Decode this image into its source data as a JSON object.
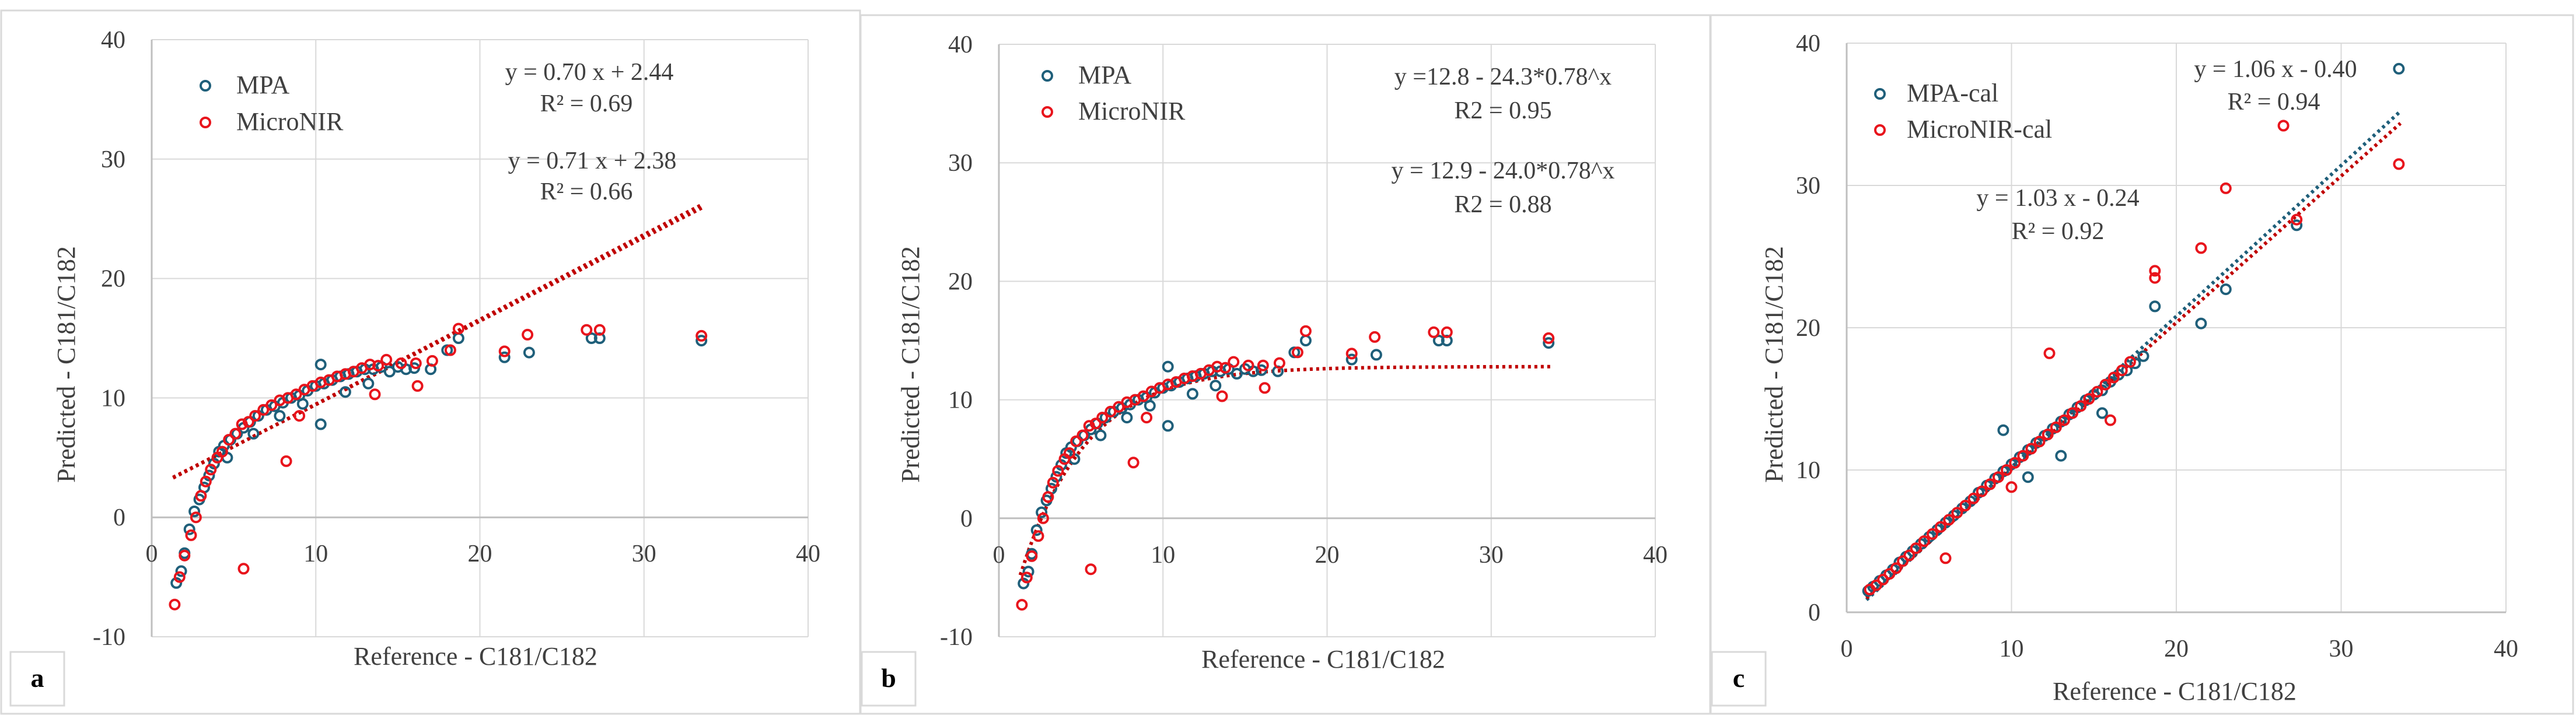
{
  "figure": {
    "charts": [
      {
        "panel_label": "a",
        "legend": [
          "MPA",
          "MicroNIR"
        ],
        "annotations": [
          "y = 0.70 x + 2.44",
          "R² = 0.69",
          "y = 0.71 x + 2.38",
          "R² = 0.66"
        ]
      },
      {
        "panel_label": "b",
        "legend": [
          "MPA",
          "MicroNIR"
        ],
        "annotations": [
          "y =12.8 - 24.3*0.78^x",
          "R2 = 0.95",
          "y = 12.9 - 24.0*0.78^x",
          "R2 = 0.88"
        ]
      },
      {
        "panel_label": "c",
        "legend": [
          "MPA-cal",
          "MicroNIR-cal"
        ],
        "annotations": [
          "y = 1.06 x - 0.40",
          "R² = 0.94",
          "y = 1.03 x - 0.24",
          "R² = 0.92"
        ]
      }
    ]
  },
  "colors": {
    "mpa": "#1f5f7a",
    "micronir": "#e8141c",
    "trend": "#c00000",
    "grid": "#d9d9d9",
    "axis": "#bfbfbf",
    "text": "#404040"
  },
  "chart_data": [
    {
      "type": "scatter",
      "title": "",
      "xlabel": "Reference - C181/C182",
      "ylabel": "Predicted - C181/C182",
      "xlim": [
        0,
        40
      ],
      "ylim": [
        -10,
        40
      ],
      "xticks": [
        0,
        10,
        20,
        30,
        40
      ],
      "yticks": [
        -10,
        0,
        10,
        20,
        30,
        40
      ],
      "grid": true,
      "legend_position": "top-left",
      "series": [
        {
          "name": "MPA",
          "marker": "open-circle",
          "x": [
            1.5,
            1.8,
            2.0,
            2.3,
            2.6,
            2.9,
            3.2,
            3.5,
            3.8,
            4.1,
            4.4,
            4.8,
            5.2,
            5.6,
            6.0,
            6.5,
            7.0,
            7.5,
            8.0,
            8.5,
            9.0,
            9.5,
            10.0,
            10.5,
            11.0,
            11.5,
            12.0,
            12.5,
            13.0,
            13.5,
            14.0,
            14.5,
            15.0,
            15.5,
            16.0,
            17.0,
            18.0,
            18.7,
            21.5,
            23.0,
            26.8,
            27.3,
            33.5,
            4.6,
            6.2,
            7.8,
            9.2,
            10.3,
            11.8,
            13.2,
            10.3
          ],
          "y": [
            -5.5,
            -4.5,
            -3.0,
            -1.0,
            0.5,
            1.5,
            2.5,
            3.5,
            4.5,
            5.5,
            6.0,
            6.5,
            7.0,
            7.5,
            8.0,
            8.5,
            9.0,
            9.3,
            9.6,
            10.0,
            10.2,
            10.6,
            11.0,
            11.2,
            11.5,
            11.8,
            12.0,
            12.2,
            12.4,
            12.4,
            12.6,
            12.2,
            12.6,
            12.4,
            12.5,
            12.4,
            14.0,
            15.0,
            13.4,
            13.8,
            15.0,
            15.0,
            14.8,
            5.0,
            7.0,
            8.5,
            9.5,
            12.8,
            10.5,
            11.2,
            7.8
          ]
        },
        {
          "name": "MicroNIR",
          "marker": "open-circle",
          "x": [
            1.4,
            1.7,
            2.0,
            2.4,
            2.7,
            3.0,
            3.3,
            3.6,
            4.0,
            4.3,
            4.7,
            5.1,
            5.5,
            5.9,
            6.3,
            6.8,
            7.3,
            7.8,
            8.3,
            8.8,
            9.3,
            9.8,
            10.3,
            10.8,
            11.3,
            11.8,
            12.3,
            12.8,
            13.3,
            13.8,
            14.3,
            15.2,
            16.1,
            17.1,
            18.2,
            18.7,
            21.5,
            22.9,
            26.5,
            27.3,
            33.5,
            5.6,
            8.2,
            9.0,
            13.6,
            16.2
          ],
          "y": [
            -7.3,
            -5.0,
            -3.2,
            -1.5,
            0.0,
            1.8,
            3.0,
            4.0,
            5.0,
            5.5,
            6.5,
            7.0,
            7.8,
            8.0,
            8.5,
            9.0,
            9.4,
            9.8,
            10.0,
            10.3,
            10.7,
            11.0,
            11.3,
            11.5,
            11.8,
            12.0,
            12.2,
            12.5,
            12.8,
            12.7,
            13.2,
            12.9,
            12.9,
            13.1,
            14.0,
            15.8,
            13.9,
            15.3,
            15.7,
            15.7,
            15.2,
            -4.3,
            4.7,
            8.5,
            10.3,
            11.0
          ]
        }
      ],
      "trendlines": [
        {
          "series": "MPA",
          "kind": "linear",
          "slope": 0.7,
          "intercept": 2.44,
          "x_range": [
            1.3,
            33.6
          ]
        },
        {
          "series": "MicroNIR",
          "kind": "linear",
          "slope": 0.71,
          "intercept": 2.38,
          "x_range": [
            1.3,
            33.6
          ]
        }
      ]
    },
    {
      "type": "scatter",
      "title": "",
      "xlabel": "Reference - C181/C182",
      "ylabel": "Predicted - C181/C182",
      "xlim": [
        0,
        40
      ],
      "ylim": [
        -10,
        40
      ],
      "xticks": [
        0,
        10,
        20,
        30,
        40
      ],
      "yticks": [
        -10,
        0,
        10,
        20,
        30,
        40
      ],
      "grid": true,
      "legend_position": "top-left",
      "series": [
        {
          "name": "MPA",
          "marker": "open-circle",
          "x": [
            1.5,
            1.8,
            2.0,
            2.3,
            2.6,
            2.9,
            3.2,
            3.5,
            3.8,
            4.1,
            4.4,
            4.8,
            5.2,
            5.6,
            6.0,
            6.5,
            7.0,
            7.5,
            8.0,
            8.5,
            9.0,
            9.5,
            10.0,
            10.5,
            11.0,
            11.5,
            12.0,
            12.5,
            13.0,
            13.5,
            14.0,
            14.5,
            15.0,
            15.5,
            16.0,
            17.0,
            18.0,
            18.7,
            21.5,
            23.0,
            26.8,
            27.3,
            33.5,
            4.6,
            6.2,
            7.8,
            9.2,
            10.3,
            11.8,
            13.2,
            10.3
          ],
          "y": [
            -5.5,
            -4.5,
            -3.0,
            -1.0,
            0.5,
            1.5,
            2.5,
            3.5,
            4.5,
            5.5,
            6.0,
            6.5,
            7.0,
            7.5,
            8.0,
            8.5,
            9.0,
            9.3,
            9.6,
            10.0,
            10.2,
            10.6,
            11.0,
            11.2,
            11.5,
            11.8,
            12.0,
            12.2,
            12.4,
            12.4,
            12.6,
            12.2,
            12.6,
            12.4,
            12.5,
            12.4,
            14.0,
            15.0,
            13.4,
            13.8,
            15.0,
            15.0,
            14.8,
            5.0,
            7.0,
            8.5,
            9.5,
            12.8,
            10.5,
            11.2,
            7.8
          ]
        },
        {
          "name": "MicroNIR",
          "marker": "open-circle",
          "x": [
            1.4,
            1.7,
            2.0,
            2.4,
            2.7,
            3.0,
            3.3,
            3.6,
            4.0,
            4.3,
            4.7,
            5.1,
            5.5,
            5.9,
            6.3,
            6.8,
            7.3,
            7.8,
            8.3,
            8.8,
            9.3,
            9.8,
            10.3,
            10.8,
            11.3,
            11.8,
            12.3,
            12.8,
            13.3,
            13.8,
            14.3,
            15.2,
            16.1,
            17.1,
            18.2,
            18.7,
            21.5,
            22.9,
            26.5,
            27.3,
            33.5,
            5.6,
            8.2,
            9.0,
            13.6,
            16.2
          ],
          "y": [
            -7.3,
            -5.0,
            -3.2,
            -1.5,
            0.0,
            1.8,
            3.0,
            4.0,
            5.0,
            5.5,
            6.5,
            7.0,
            7.8,
            8.0,
            8.5,
            9.0,
            9.4,
            9.8,
            10.0,
            10.3,
            10.7,
            11.0,
            11.3,
            11.5,
            11.8,
            12.0,
            12.2,
            12.5,
            12.8,
            12.7,
            13.2,
            12.9,
            12.9,
            13.1,
            14.0,
            15.8,
            13.9,
            15.3,
            15.7,
            15.7,
            15.2,
            -4.3,
            4.7,
            8.5,
            10.3,
            11.0
          ]
        }
      ],
      "trendlines": [
        {
          "series": "MPA",
          "kind": "exponential",
          "a": 12.8,
          "b": 24.3,
          "c": 0.78,
          "x_range": [
            1.3,
            33.6
          ]
        }
      ]
    },
    {
      "type": "scatter",
      "title": "",
      "xlabel": "Reference - C181/C182",
      "ylabel": "Predicted - C181/C182",
      "xlim": [
        0,
        40
      ],
      "ylim": [
        0,
        40
      ],
      "xticks": [
        0,
        10,
        20,
        30,
        40
      ],
      "yticks": [
        0,
        10,
        20,
        30,
        40
      ],
      "grid": true,
      "legend_position": "top-left",
      "series": [
        {
          "name": "MPA-cal",
          "marker": "open-circle",
          "x": [
            1.3,
            1.6,
            2.0,
            2.4,
            2.8,
            3.2,
            3.6,
            4.0,
            4.5,
            5.0,
            5.5,
            6.0,
            6.5,
            7.0,
            7.5,
            8.0,
            8.5,
            9.0,
            9.5,
            10.0,
            10.5,
            11.0,
            11.5,
            12.0,
            12.5,
            13.0,
            13.5,
            14.0,
            14.5,
            15.0,
            15.5,
            16.0,
            16.5,
            17.0,
            17.5,
            18.0,
            18.7,
            21.5,
            23.0,
            27.3,
            33.5,
            9.5,
            11.0,
            13.0,
            15.5
          ],
          "y": [
            1.5,
            1.8,
            2.2,
            2.6,
            3.0,
            3.5,
            3.9,
            4.3,
            4.8,
            5.3,
            5.8,
            6.3,
            6.8,
            7.3,
            7.8,
            8.4,
            8.9,
            9.4,
            9.9,
            10.4,
            10.9,
            11.4,
            11.9,
            12.4,
            12.9,
            13.4,
            13.9,
            14.4,
            14.9,
            15.3,
            15.6,
            16.2,
            16.7,
            17.0,
            17.5,
            18.0,
            21.5,
            20.3,
            22.7,
            27.2,
            38.2,
            12.8,
            9.5,
            11.0,
            14.0
          ]
        },
        {
          "name": "MicroNIR-cal",
          "marker": "open-circle",
          "x": [
            1.4,
            1.8,
            2.2,
            2.6,
            3.0,
            3.4,
            3.8,
            4.2,
            4.7,
            5.2,
            5.7,
            6.2,
            6.7,
            7.2,
            7.7,
            8.2,
            8.7,
            9.2,
            9.7,
            10.2,
            10.7,
            11.2,
            11.7,
            12.2,
            12.7,
            13.2,
            13.7,
            14.2,
            14.7,
            15.2,
            15.7,
            16.2,
            16.7,
            17.2,
            18.7,
            18.7,
            21.5,
            23.0,
            26.5,
            27.3,
            33.5,
            6.0,
            10.0,
            12.3,
            16.0
          ],
          "y": [
            1.6,
            1.9,
            2.3,
            2.7,
            3.1,
            3.6,
            4.0,
            4.5,
            5.0,
            5.5,
            6.0,
            6.5,
            7.0,
            7.5,
            8.0,
            8.5,
            9.0,
            9.5,
            10.0,
            10.5,
            11.0,
            11.5,
            12.0,
            12.5,
            13.0,
            13.5,
            14.0,
            14.5,
            15.0,
            15.5,
            16.0,
            16.5,
            17.0,
            17.6,
            24.0,
            23.5,
            25.6,
            29.8,
            34.2,
            27.6,
            31.5,
            3.8,
            8.8,
            18.2,
            13.5
          ]
        }
      ],
      "trendlines": [
        {
          "series": "MPA-cal",
          "kind": "linear",
          "slope": 1.06,
          "intercept": -0.4,
          "x_range": [
            1.2,
            33.6
          ],
          "color": "mpa"
        },
        {
          "series": "MicroNIR-cal",
          "kind": "linear",
          "slope": 1.03,
          "intercept": -0.24,
          "x_range": [
            1.2,
            33.6
          ],
          "color": "trend"
        }
      ]
    }
  ]
}
